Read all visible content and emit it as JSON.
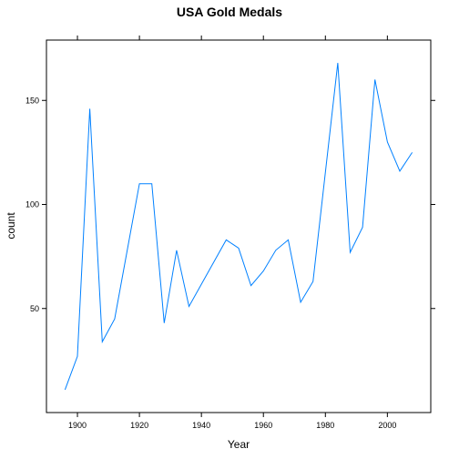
{
  "chart_data": {
    "type": "line",
    "title": "USA Gold Medals",
    "xlabel": "Year",
    "ylabel": "count",
    "xlim": [
      1890,
      2014
    ],
    "ylim": [
      0,
      179
    ],
    "x_ticks": [
      1900,
      1920,
      1940,
      1960,
      1980,
      2000
    ],
    "y_ticks": [
      50,
      100,
      150
    ],
    "grid": false,
    "line_color": "#0080ff",
    "series": [
      {
        "x": [
          1896,
          1900,
          1904,
          1908,
          1912,
          1920,
          1924,
          1928,
          1932,
          1936,
          1948,
          1952,
          1956,
          1960,
          1964,
          1968,
          1972,
          1976,
          1984,
          1988,
          1992,
          1996,
          2000,
          2004,
          2008
        ],
        "values": [
          11,
          27,
          146,
          34,
          45,
          110,
          110,
          43,
          78,
          51,
          83,
          79,
          61,
          68,
          78,
          83,
          53,
          63,
          168,
          77,
          89,
          160,
          130,
          116,
          125
        ]
      }
    ]
  }
}
